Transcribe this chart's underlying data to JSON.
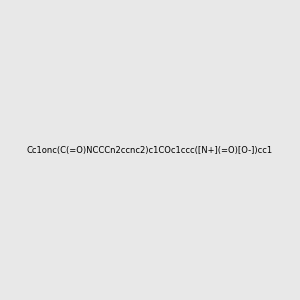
{
  "smiles": "Cc1onc(C(=O)NCCCn2ccnc2)c1COc1ccc([N+](=O)[O-])cc1",
  "image_size": 300,
  "background_color": "#e8e8e8"
}
